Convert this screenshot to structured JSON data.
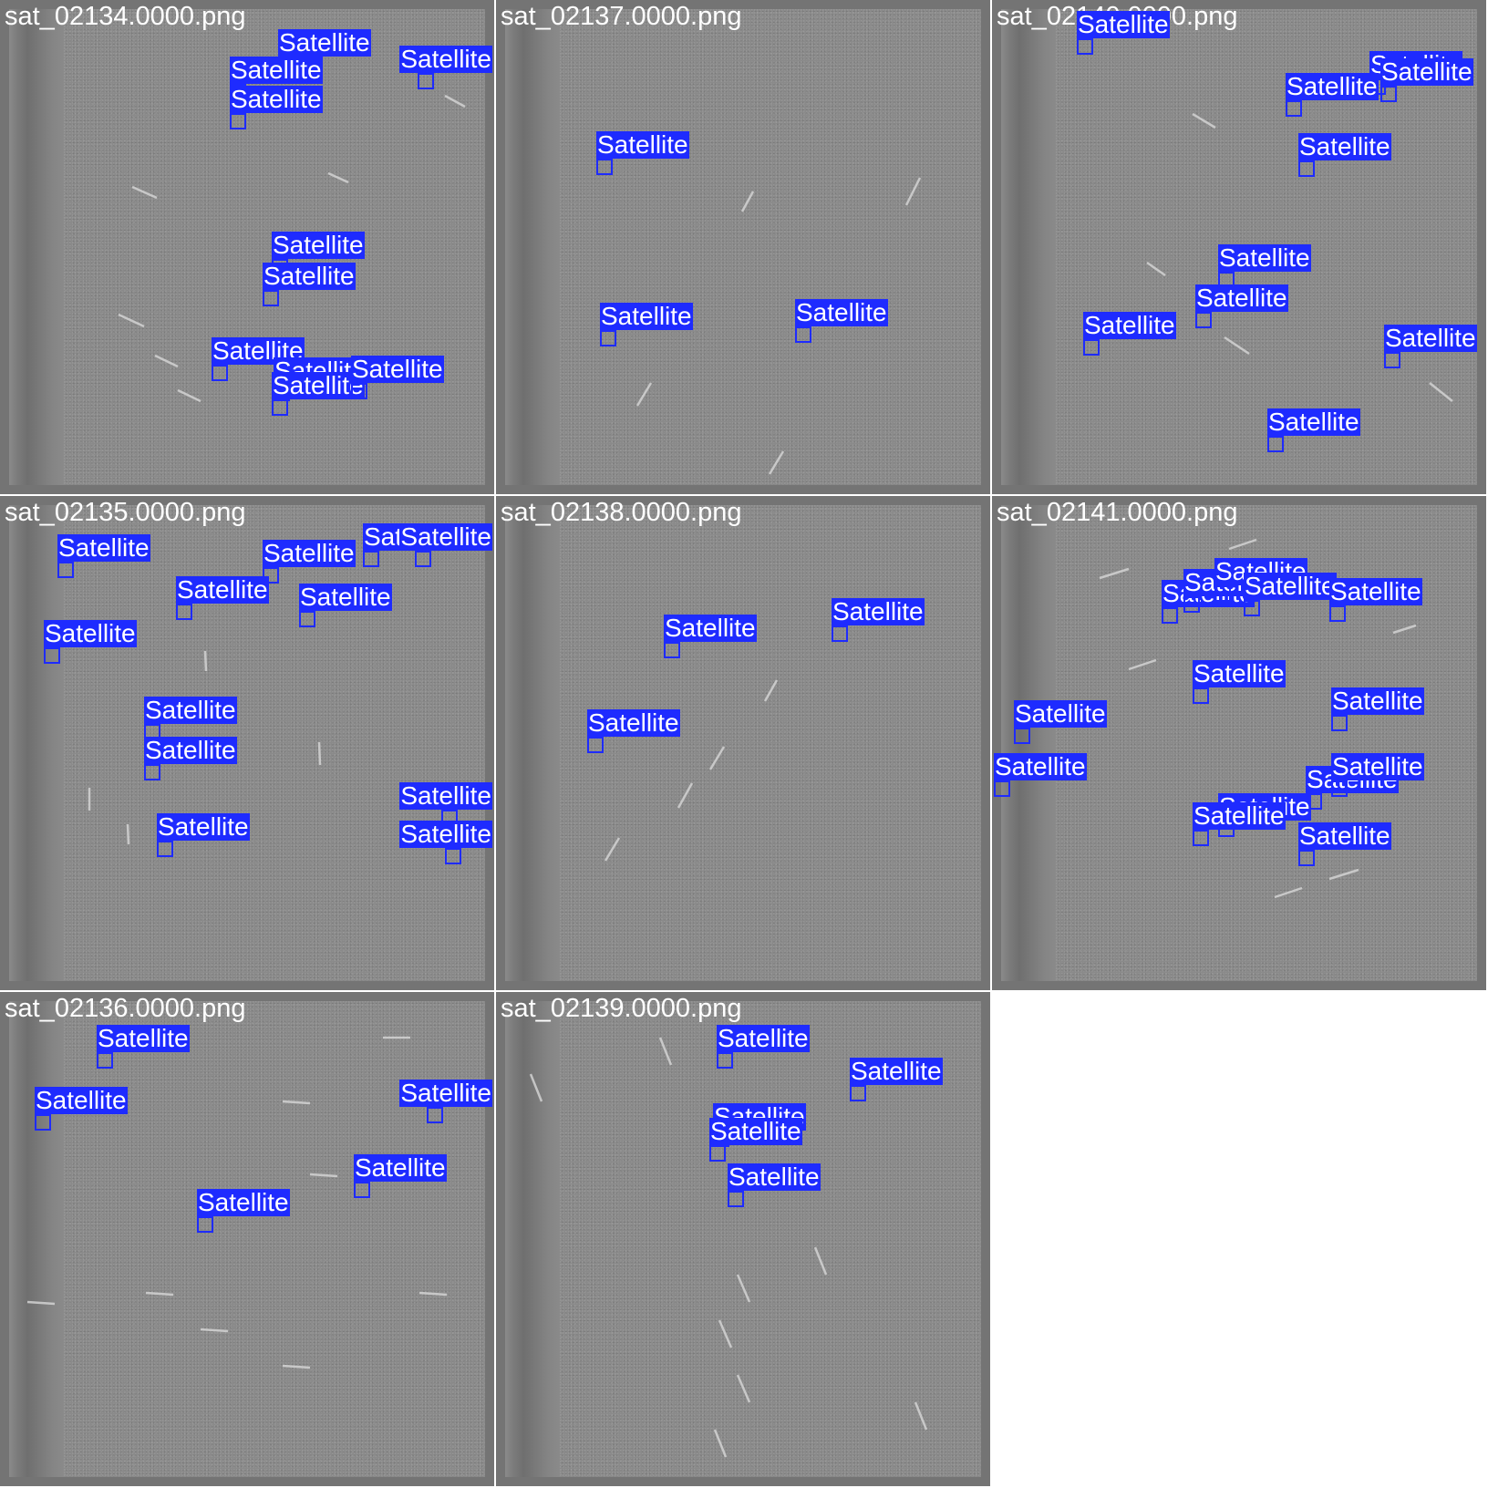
{
  "tiles": [
    {
      "title": "sat_02134.0000.png",
      "detections": [
        "Satellite",
        "Satellite",
        "Satellite",
        "Satellite",
        "Satellite",
        "Satellite",
        "Satellite",
        "Satellite",
        "Satellite",
        "Satellite"
      ]
    },
    {
      "title": "sat_02137.0000.png",
      "detections": [
        "Satellite",
        "Satellite",
        "Satellite"
      ]
    },
    {
      "title": "sat_02140.0000.png",
      "detections": [
        "Satellite",
        "Satellite",
        "Satellite",
        "Satellite",
        "Satellite",
        "Satellite",
        "Satellite",
        "Satellite",
        "Satellite",
        "Satellite"
      ]
    },
    {
      "title": "sat_02135.0000.png",
      "detections": [
        "Satellite",
        "Satellite",
        "Satellite",
        "Satellite",
        "Satellite",
        "Satellite",
        "Satellite",
        "Satellite",
        "Satellite",
        "Satellite",
        "Satellite",
        "Satellite"
      ]
    },
    {
      "title": "sat_02138.0000.png",
      "detections": [
        "Satellite",
        "Satellite",
        "Satellite"
      ]
    },
    {
      "title": "sat_02141.0000.png",
      "detections": [
        "Satellite",
        "Satellite",
        "Satellite",
        "Satellite",
        "Satellite",
        "Satellite",
        "Satellite",
        "Satellite",
        "Satellite",
        "Satellite",
        "Satellite",
        "Satellite",
        "Satellite",
        "Satellite"
      ]
    },
    {
      "title": "sat_02136.0000.png",
      "detections": [
        "Satellite",
        "Satellite",
        "Satellite",
        "Satellite",
        "Satellite"
      ]
    },
    {
      "title": "sat_02139.0000.png",
      "detections": [
        "Satellite",
        "Satellite",
        "Satellite",
        "Satellite",
        "Satellite"
      ]
    }
  ],
  "colors": {
    "box": "#1e2bff",
    "label_text": "#ffffff",
    "tile_border": "#747474",
    "sky": "#8a8a8a"
  }
}
